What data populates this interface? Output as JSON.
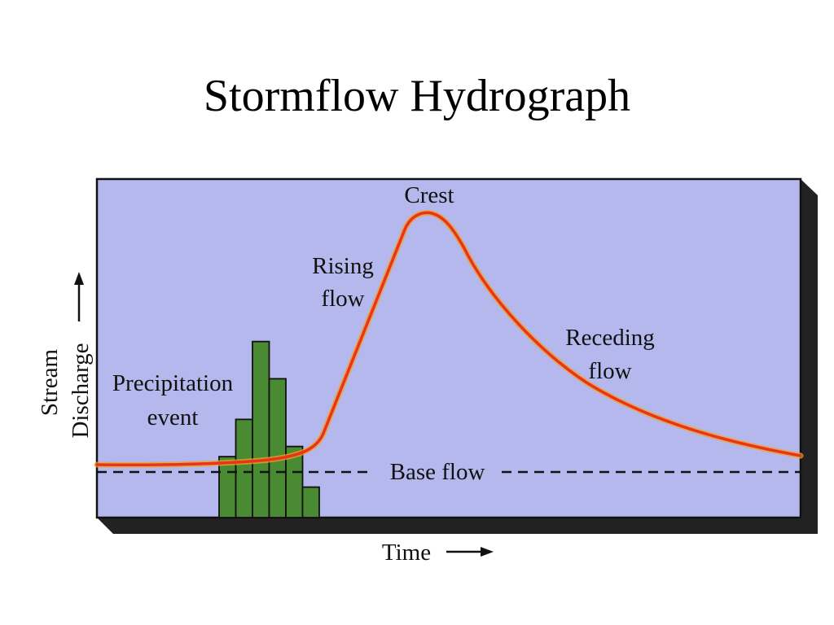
{
  "title": "Stormflow Hydrograph",
  "labels": {
    "crest": "Crest",
    "rising_line1": "Rising",
    "rising_line2": "flow",
    "receding_line1": "Receding",
    "receding_line2": "flow",
    "precip_line1": "Precipitation",
    "precip_line2": "event",
    "base_flow": "Base flow",
    "y_axis_line1": "Stream",
    "y_axis_line2": "Discharge",
    "x_axis": "Time"
  },
  "colors": {
    "panel_fill": "#b4b8ec",
    "hydrograph_line": "#e8341c",
    "hydrograph_glow": "#f4a020",
    "precip_bars": "#4a8a32",
    "base_flow_line": "#111111"
  },
  "precipitation_bars": [
    0.18,
    0.29,
    0.52,
    0.41,
    0.21,
    0.09
  ]
}
